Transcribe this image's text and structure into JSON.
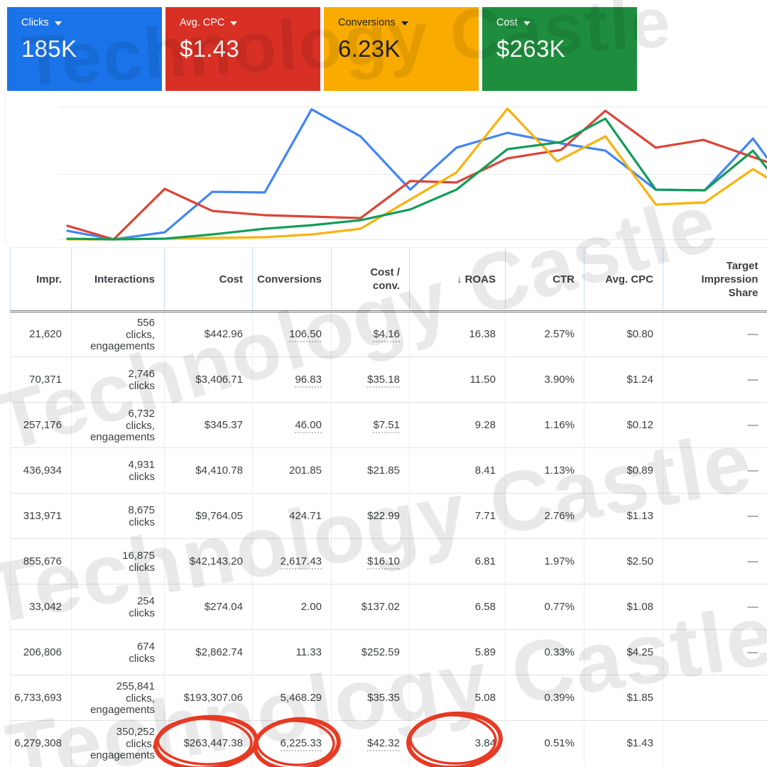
{
  "watermark": {
    "text": "Technology Castle"
  },
  "scorecards": [
    {
      "label": "Clicks",
      "value": "185K",
      "color": "#1a73e8",
      "text_color": "#ffffff"
    },
    {
      "label": "Avg. CPC",
      "value": "$1.43",
      "color": "#d93025",
      "text_color": "#ffffff"
    },
    {
      "label": "Conversions",
      "value": "6.23K",
      "color": "#f9ab00",
      "text_color": "#202124"
    },
    {
      "label": "Cost",
      "value": "$263K",
      "color": "#1e8e3e",
      "text_color": "#ffffff"
    }
  ],
  "chart_data": {
    "type": "line",
    "title": "",
    "xlabel": "",
    "ylabel": "",
    "x_axis_visible": false,
    "y_axis_visible": false,
    "legend": "none",
    "gridlines": true,
    "note": "x and y are percentages of plot area (y 0 = bottom gridline, 100 = top gridline); no axis labels are shown in the UI",
    "series": [
      {
        "name": "Clicks",
        "color": "#4285f4",
        "x": [
          0,
          6.6,
          13.9,
          20.7,
          28.2,
          34.9,
          41.9,
          49,
          55.6,
          62.9,
          70.6,
          76.9,
          84.1,
          91.1,
          98,
          100
        ],
        "y": [
          6.4,
          0,
          5.3,
          35.8,
          35.3,
          97.9,
          77.5,
          37.4,
          69,
          80.2,
          72.2,
          66.8,
          37.4,
          36.9,
          75.9,
          61.5
        ]
      },
      {
        "name": "Avg. CPC",
        "color": "#db4437",
        "x": [
          0,
          6.6,
          13.9,
          20.7,
          28.2,
          34.9,
          41.9,
          49,
          55.6,
          62.9,
          70.6,
          76.9,
          84.1,
          90.9,
          100
        ],
        "y": [
          10.2,
          0,
          38,
          21.4,
          18.2,
          17.1,
          16,
          43.9,
          42.8,
          61,
          67.4,
          96.8,
          69,
          74.9,
          58.3
        ]
      },
      {
        "name": "Conversions",
        "color": "#f9b208",
        "x": [
          0,
          6.6,
          13.9,
          20.7,
          28.2,
          35,
          41.9,
          49,
          55.6,
          62.9,
          70,
          76.9,
          84.1,
          91.1,
          98,
          100
        ],
        "y": [
          0,
          0,
          0.5,
          1,
          1.6,
          3.7,
          8,
          30,
          50.3,
          98.4,
          58.8,
          77.5,
          26.2,
          27.8,
          52.9,
          46.5
        ]
      },
      {
        "name": "Cost",
        "color": "#0f9d58",
        "x": [
          0,
          6.6,
          13.9,
          20.7,
          28.2,
          35,
          41.9,
          49,
          55.6,
          62.9,
          70.6,
          76.9,
          84.1,
          91.1,
          98,
          100
        ],
        "y": [
          0.5,
          0,
          0.5,
          3.7,
          8,
          10.7,
          14.4,
          22.5,
          37.4,
          67.9,
          73.3,
          90.9,
          37.4,
          36.9,
          66.8,
          53.5
        ]
      }
    ]
  },
  "table": {
    "columns": [
      "Impr.",
      "Interactions",
      "Cost",
      "Conversions",
      "Cost /\nconv.",
      "ROAS",
      "CTR",
      "Avg. CPC",
      "Target\nImpression\nShare"
    ],
    "sorted_column_index": 5,
    "sort_arrow": "↓",
    "rows": [
      {
        "impr": "21,620",
        "interactions_value": "556",
        "interactions_unit": "clicks, engagements",
        "cost": "$442.96",
        "conversions": "106.50",
        "cost_per_conv": "$4.16",
        "roas": "16.38",
        "ctr": "2.57%",
        "avg_cpc": "$0.80",
        "target_impression_share": "—",
        "dotted": true
      },
      {
        "impr": "70,371",
        "interactions_value": "2,746",
        "interactions_unit": "clicks",
        "cost": "$3,406.71",
        "conversions": "96.83",
        "cost_per_conv": "$35.18",
        "roas": "11.50",
        "ctr": "3.90%",
        "avg_cpc": "$1.24",
        "target_impression_share": "—",
        "dotted": true
      },
      {
        "impr": "257,176",
        "interactions_value": "6,732",
        "interactions_unit": "clicks, engagements",
        "cost": "$345.37",
        "conversions": "46.00",
        "cost_per_conv": "$7.51",
        "roas": "9.28",
        "ctr": "1.16%",
        "avg_cpc": "$0.12",
        "target_impression_share": "—",
        "dotted": true
      },
      {
        "impr": "436,934",
        "interactions_value": "4,931",
        "interactions_unit": "clicks",
        "cost": "$4,410.78",
        "conversions": "201.85",
        "cost_per_conv": "$21.85",
        "roas": "8.41",
        "ctr": "1.13%",
        "avg_cpc": "$0.89",
        "target_impression_share": "—",
        "dotted": false
      },
      {
        "impr": "313,971",
        "interactions_value": "8,675",
        "interactions_unit": "clicks",
        "cost": "$9,764.05",
        "conversions": "424.71",
        "cost_per_conv": "$22.99",
        "roas": "7.71",
        "ctr": "2.76%",
        "avg_cpc": "$1.13",
        "target_impression_share": "—",
        "dotted": false
      },
      {
        "impr": "855,676",
        "interactions_value": "16,875",
        "interactions_unit": "clicks",
        "cost": "$42,143.20",
        "conversions": "2,617.43",
        "cost_per_conv": "$16.10",
        "roas": "6.81",
        "ctr": "1.97%",
        "avg_cpc": "$2.50",
        "target_impression_share": "—",
        "dotted": true
      },
      {
        "impr": "33,042",
        "interactions_value": "254",
        "interactions_unit": "clicks",
        "cost": "$274.04",
        "conversions": "2.00",
        "cost_per_conv": "$137.02",
        "roas": "6.58",
        "ctr": "0.77%",
        "avg_cpc": "$1.08",
        "target_impression_share": "—",
        "dotted": false
      },
      {
        "impr": "206,806",
        "interactions_value": "674",
        "interactions_unit": "clicks",
        "cost": "$2,862.74",
        "conversions": "11.33",
        "cost_per_conv": "$252.59",
        "roas": "5.89",
        "ctr": "0.33%",
        "avg_cpc": "$4.25",
        "target_impression_share": "—",
        "dotted": false
      },
      {
        "impr": "6,733,693",
        "interactions_value": "255,841",
        "interactions_unit": "clicks, engagements",
        "cost": "$193,307.06",
        "conversions": "5,468.29",
        "cost_per_conv": "$35.35",
        "roas": "5.08",
        "ctr": "0.39%",
        "avg_cpc": "$1.85",
        "target_impression_share": "",
        "dotted": false
      },
      {
        "impr": "6,279,308",
        "interactions_value": "350,252",
        "interactions_unit": "clicks, engagements",
        "cost": "$263,447.38",
        "conversions": "6,225.33",
        "cost_per_conv": "$42.32",
        "roas": "3.84",
        "ctr": "0.51%",
        "avg_cpc": "$1.43",
        "target_impression_share": "",
        "dotted": true
      }
    ]
  },
  "annotations": {
    "circle_color": "#e63a24",
    "circled_values": [
      "$263,447.38",
      "6,225.33",
      "3.84"
    ],
    "circled_row_index": 9,
    "circled_fields": [
      "cost",
      "conversions",
      "roas"
    ]
  }
}
